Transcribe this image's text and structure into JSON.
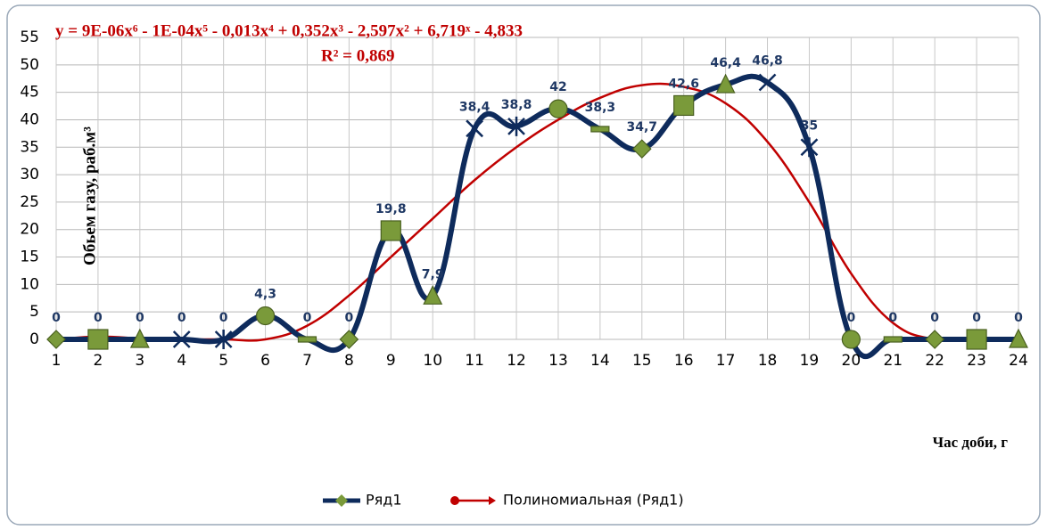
{
  "chart_data": {
    "type": "line",
    "annotations": [
      "y = 9E-06x⁶ - 1E-04x⁵ - 0,013x⁴ + 0,352x³ - 2,597x² + 6,719ˣ - 4,833",
      "R² = 0,869"
    ],
    "y_label": "Обьем газу, раб.м³",
    "x_label": "Час доби, г",
    "categories": [
      "1",
      "2",
      "3",
      "4",
      "5",
      "6",
      "7",
      "8",
      "9",
      "10",
      "11",
      "12",
      "13",
      "14",
      "15",
      "16",
      "17",
      "18",
      "19",
      "20",
      "21",
      "22",
      "23",
      "24"
    ],
    "series": [
      {
        "name": "Ряд1",
        "color": "#0e2b5c",
        "marker_color": "#7a9a3a",
        "values": [
          0,
          0,
          0,
          0,
          0,
          4.3,
          0,
          0,
          19.8,
          7.9,
          38.4,
          38.8,
          42,
          38.3,
          34.7,
          42.6,
          46.4,
          46.8,
          35,
          0,
          0,
          0,
          0,
          0
        ],
        "value_labels": [
          "0",
          "0",
          "0",
          "0",
          "0",
          "4,3",
          "0",
          "0",
          "19,8",
          "7,9",
          "38,4",
          "38,8",
          "42",
          "38,3",
          "34,7",
          "42,6",
          "46,4",
          "46,8",
          "35",
          "0",
          "0",
          "0",
          "0",
          "0"
        ]
      },
      {
        "name": "Полиномиальная (Ряд1)",
        "color": "#c00000",
        "values": [
          0,
          0.5,
          0.2,
          0,
          0,
          0,
          2.5,
          8,
          15,
          22,
          29,
          35,
          40,
          44,
          46.3,
          46,
          43,
          36,
          25,
          12,
          3,
          0,
          0,
          0
        ]
      }
    ],
    "ylim": [
      0,
      55
    ],
    "yticks": [
      0,
      5,
      10,
      15,
      20,
      25,
      30,
      35,
      40,
      45,
      50,
      55
    ],
    "grid": true,
    "legend": "bottom"
  }
}
